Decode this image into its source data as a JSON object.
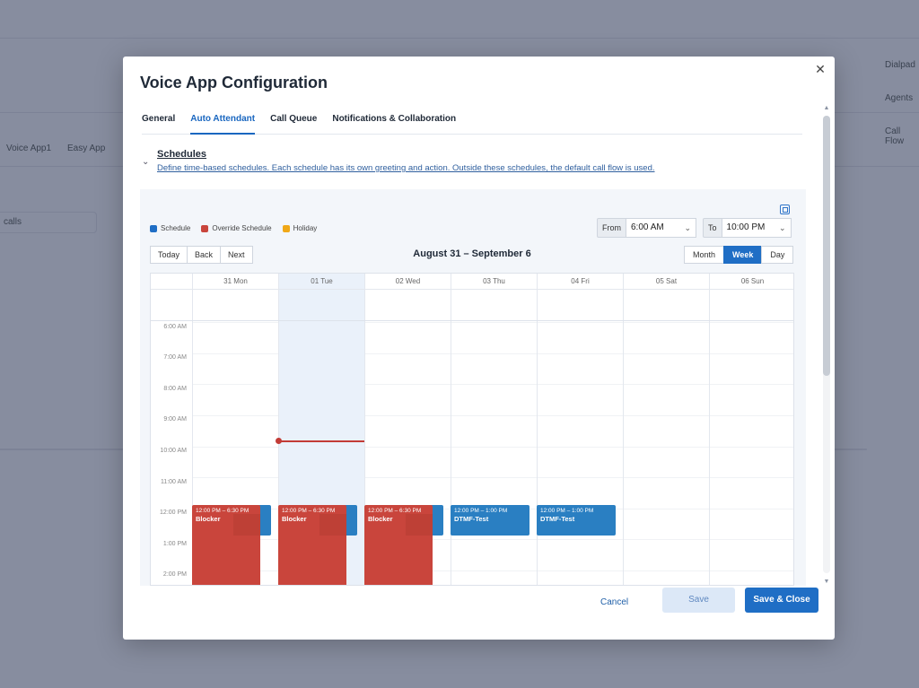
{
  "background": {
    "breadcrumb_app": "Voice App1",
    "breadcrumb_easy": "Easy App",
    "filter_value": "calls",
    "right_tabs": [
      "Dialpad",
      "Agents",
      "Call Flow"
    ]
  },
  "modal": {
    "title": "Voice App Configuration",
    "close_label": "✕",
    "tabs": [
      {
        "label": "General",
        "active": false
      },
      {
        "label": "Auto Attendant",
        "active": true
      },
      {
        "label": "Call Queue",
        "active": false
      },
      {
        "label": "Notifications & Collaboration",
        "active": false
      }
    ],
    "schedules": {
      "title": "Schedules",
      "description": "Define time-based schedules. Each schedule has its own greeting and action. Outside these schedules, the default call flow is used."
    },
    "calendar": {
      "legend": [
        {
          "label": "Schedule",
          "color": "#1f6ec5"
        },
        {
          "label": "Override Schedule",
          "color": "#c9453c"
        },
        {
          "label": "Holiday",
          "color": "#f0a818"
        }
      ],
      "from_label": "From",
      "from_value": "6:00 AM",
      "to_label": "To",
      "to_value": "10:00 PM",
      "nav": {
        "today": "Today",
        "back": "Back",
        "next": "Next"
      },
      "date_range": "August 31 – September 6",
      "views": [
        {
          "label": "Month",
          "active": false
        },
        {
          "label": "Week",
          "active": true
        },
        {
          "label": "Day",
          "active": false
        }
      ],
      "days": [
        "31 Mon",
        "01 Tue",
        "02 Wed",
        "03 Thu",
        "04 Fri",
        "05 Sat",
        "06 Sun"
      ],
      "today_index": 1,
      "time_labels": [
        "6:00 AM",
        "7:00 AM",
        "8:00 AM",
        "9:00 AM",
        "10:00 AM",
        "11:00 AM",
        "12:00 PM",
        "1:00 PM",
        "2:00 PM"
      ],
      "now_time": "9:47 AM",
      "events": {
        "override_time": "12:00 PM – 6:30 PM",
        "override_title": "Blocker",
        "sched_time": "12:00 PM – 1:00 PM",
        "sched_title": "DTMF-Test",
        "sched_trunc_time": "d -",
        "sched_trunc_title": "DTMF"
      }
    },
    "footer": {
      "cancel": "Cancel",
      "save": "Save",
      "save_close": "Save & Close"
    },
    "scroll_up": "▲",
    "scroll_down": "▼"
  }
}
